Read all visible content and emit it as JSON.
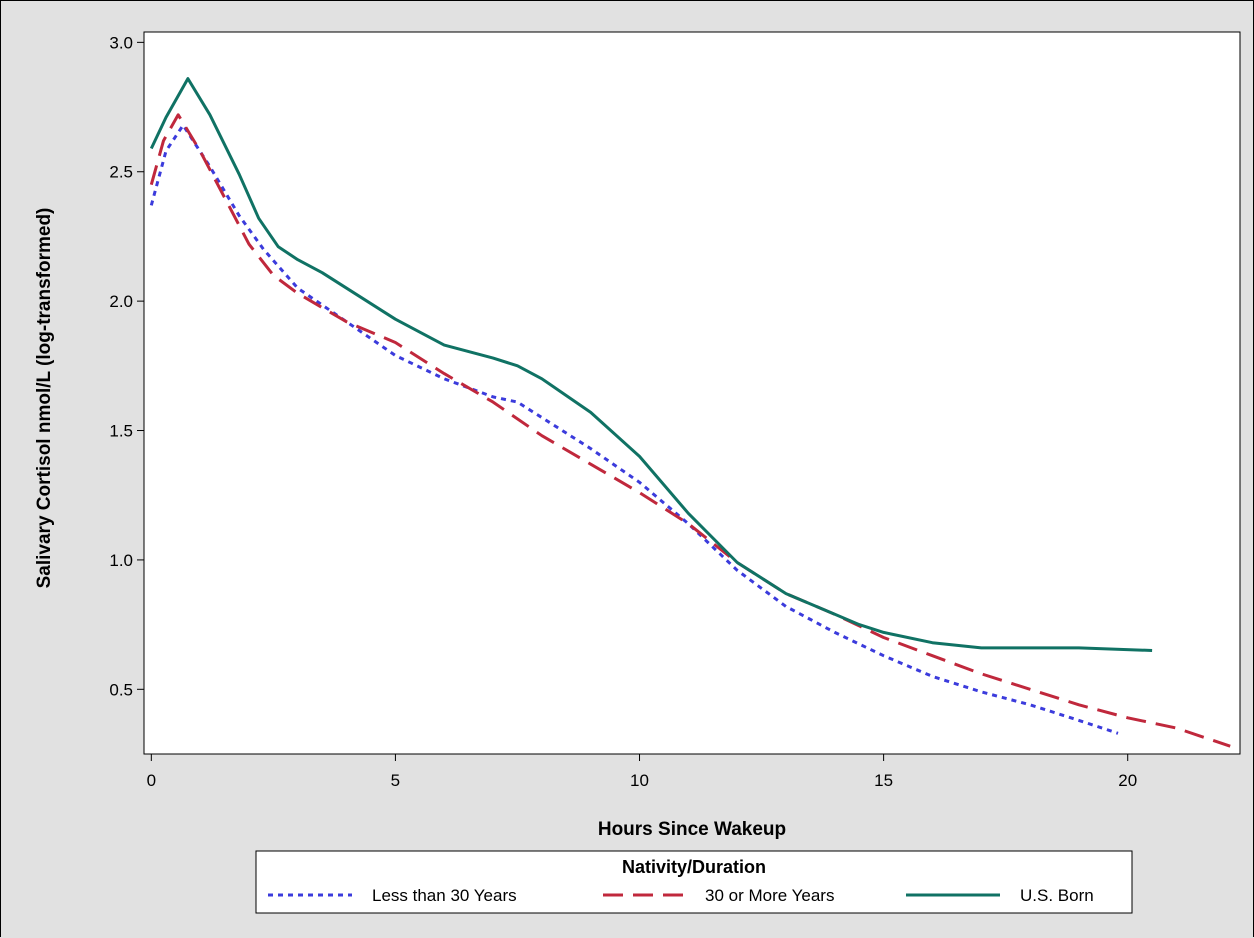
{
  "chart_data": {
    "type": "line",
    "title": "",
    "xlabel": "Hours Since Wakeup",
    "ylabel": "Salivary Cortisol nmol/L (log-transformed)",
    "xlim": [
      -0.15,
      22.3
    ],
    "ylim": [
      0.25,
      3.04
    ],
    "xticks": [
      0,
      5,
      10,
      15,
      20
    ],
    "yticks": [
      0.5,
      1.0,
      1.5,
      2.0,
      2.5,
      3.0
    ],
    "xtick_labels": [
      "0",
      "5",
      "10",
      "15",
      "20"
    ],
    "ytick_labels": [
      "0.5",
      "1.0",
      "1.5",
      "2.0",
      "2.5",
      "3.0"
    ],
    "grid": false,
    "legend": {
      "title": "Nativity/Duration",
      "placement": "bottom"
    },
    "series": [
      {
        "name": "Less than 30 Years",
        "color": "#3b3bdc",
        "style": "dotted",
        "x": [
          0,
          0.3,
          0.65,
          1.2,
          1.8,
          2.3,
          3,
          4,
          5,
          6,
          7,
          7.5,
          8,
          9,
          10,
          11,
          12,
          13,
          14,
          15,
          16,
          17,
          18,
          19,
          19.8
        ],
        "y": [
          2.37,
          2.58,
          2.68,
          2.52,
          2.33,
          2.2,
          2.05,
          1.92,
          1.79,
          1.7,
          1.63,
          1.61,
          1.55,
          1.43,
          1.3,
          1.14,
          0.96,
          0.82,
          0.72,
          0.63,
          0.55,
          0.49,
          0.44,
          0.38,
          0.33
        ]
      },
      {
        "name": "30 or More Years",
        "color": "#c0283c",
        "style": "dashed",
        "x": [
          0,
          0.25,
          0.55,
          1.0,
          1.5,
          2.0,
          2.5,
          3,
          4,
          5,
          6,
          7,
          8,
          9,
          10,
          11,
          12,
          13,
          14,
          15,
          16,
          17,
          18,
          19,
          20,
          21,
          22.1
        ],
        "y": [
          2.45,
          2.62,
          2.72,
          2.58,
          2.4,
          2.22,
          2.1,
          2.03,
          1.92,
          1.84,
          1.72,
          1.61,
          1.48,
          1.37,
          1.26,
          1.14,
          0.99,
          0.87,
          0.79,
          0.7,
          0.63,
          0.56,
          0.5,
          0.44,
          0.39,
          0.35,
          0.28
        ]
      },
      {
        "name": "U.S. Born",
        "color": "#107264",
        "style": "solid",
        "x": [
          0,
          0.3,
          0.75,
          1.2,
          1.8,
          2.2,
          2.6,
          3,
          3.5,
          4,
          5,
          6,
          7,
          7.5,
          8,
          9,
          10,
          11,
          12,
          13,
          14,
          14.5,
          15,
          16,
          17,
          18,
          19,
          20.5
        ],
        "y": [
          2.59,
          2.71,
          2.86,
          2.72,
          2.49,
          2.32,
          2.21,
          2.16,
          2.11,
          2.05,
          1.93,
          1.83,
          1.78,
          1.75,
          1.7,
          1.57,
          1.4,
          1.18,
          0.99,
          0.87,
          0.79,
          0.75,
          0.72,
          0.68,
          0.66,
          0.66,
          0.66,
          0.65
        ]
      }
    ]
  }
}
